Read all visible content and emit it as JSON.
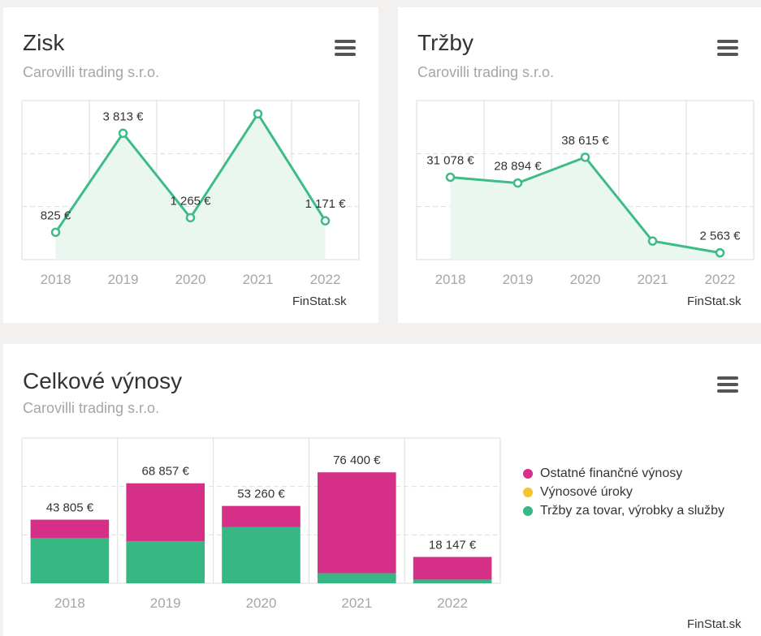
{
  "company": "Carovilli trading s.r.o.",
  "credit": "FinStat.sk",
  "charts": {
    "zisk": {
      "title": "Zisk"
    },
    "trzby": {
      "title": "Tržby"
    },
    "vynosy": {
      "title": "Celkové výnosy"
    }
  },
  "colors": {
    "line": "#3dbc86",
    "area": "#eaf7f1",
    "magenta": "#d62f87",
    "yellow": "#f4c430",
    "green": "#37b783",
    "grid": "#d9dedc",
    "tick": "#a6a6a6",
    "label": "#333333"
  },
  "legend": [
    {
      "label": "Ostatné finančné výnosy",
      "color": "#d62f87"
    },
    {
      "label": "Výnosové úroky",
      "color": "#f4c430"
    },
    {
      "label": "Tržby za tovar, výrobky a služby",
      "color": "#37b783"
    }
  ],
  "chart_data": [
    {
      "type": "line",
      "title": "Zisk",
      "subtitle": "Carovilli trading s.r.o.",
      "categories": [
        "2018",
        "2019",
        "2020",
        "2021",
        "2022"
      ],
      "values": [
        825,
        3813,
        1265,
        4400,
        1171
      ],
      "data_labels": [
        "825 €",
        "3 813 €",
        "1 265 €",
        "",
        "1 171 €"
      ],
      "ylim": [
        0,
        4800
      ],
      "grid": true
    },
    {
      "type": "line",
      "title": "Tržby",
      "subtitle": "Carovilli trading s.r.o.",
      "categories": [
        "2018",
        "2019",
        "2020",
        "2021",
        "2022"
      ],
      "values": [
        31078,
        28894,
        38615,
        7000,
        2563
      ],
      "data_labels": [
        "31 078 €",
        "28 894 €",
        "38 615 €",
        "",
        "2 563 €"
      ],
      "ylim": [
        0,
        60000
      ],
      "grid": true
    },
    {
      "type": "bar",
      "stacked": true,
      "title": "Celkové výnosy",
      "subtitle": "Carovilli trading s.r.o.",
      "categories": [
        "2018",
        "2019",
        "2020",
        "2021",
        "2022"
      ],
      "series": [
        {
          "name": "Tržby za tovar, výrobky a služby",
          "values": [
            31078,
            28894,
            38615,
            7000,
            2563
          ]
        },
        {
          "name": "Výnosové úroky",
          "values": [
            0,
            0,
            0,
            0,
            0
          ]
        },
        {
          "name": "Ostatné finančné výnosy",
          "values": [
            12727,
            39963,
            14645,
            69400,
            15584
          ]
        }
      ],
      "totals": [
        "43 805 €",
        "68 857 €",
        "53 260 €",
        "76 400 €",
        "18 147 €"
      ],
      "legend_position": "right",
      "ylim": [
        0,
        100000
      ],
      "grid": true
    }
  ]
}
